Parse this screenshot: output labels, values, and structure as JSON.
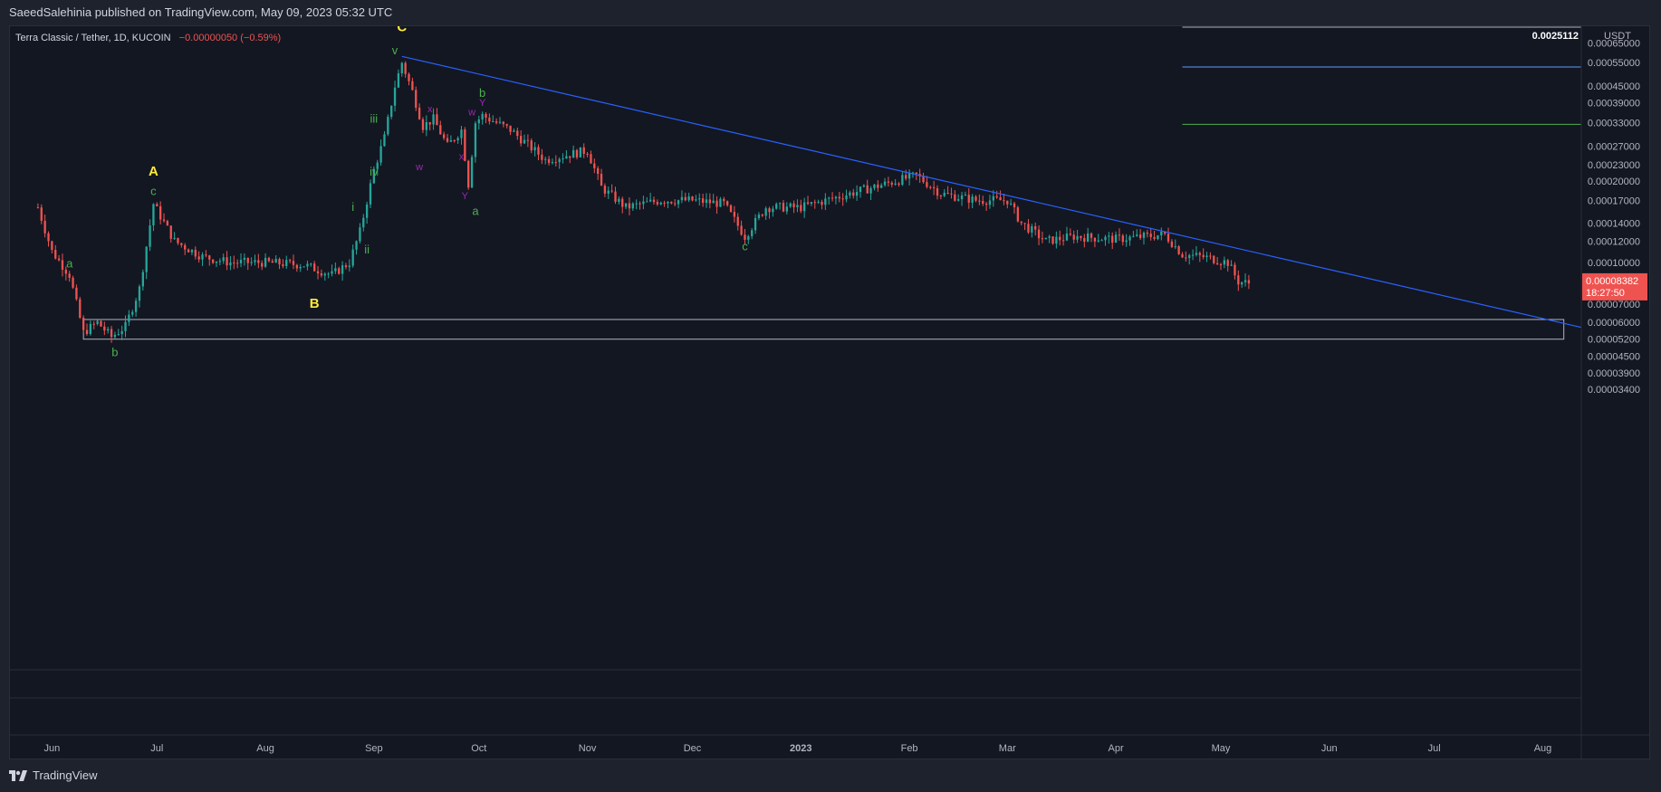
{
  "header": {
    "attribution": "SaeedSalehinia published on TradingView.com, May 09, 2023 05:32 UTC"
  },
  "footer": {
    "brand": "TradingView"
  },
  "colors": {
    "background": "#131722",
    "panel": "#1e222d",
    "up": "#26a69a",
    "down": "#ef5350",
    "trendline": "#2962ff",
    "wave_major": "#ffeb3b",
    "wave_minor": "#4caf50",
    "wave_complex": "#9c27b0",
    "axis_text": "#b2b5be"
  },
  "chart_data": {
    "type": "candlestick",
    "legend": {
      "symbol": "Terra Classic / Tether, 1D, KUCOIN",
      "change": "−0.00000050 (−0.59%)"
    },
    "y_axis": {
      "currency": "USDT",
      "scale": "log",
      "range": [
        3.1e-06,
        0.00075
      ],
      "ticks": [
        "0.00065000",
        "0.00055000",
        "0.00045000",
        "0.00039000",
        "0.00033000",
        "0.00027000",
        "0.00023000",
        "0.00020000",
        "0.00017000",
        "0.00014000",
        "0.00012000",
        "0.00010000",
        "0.00007000",
        "0.00006000",
        "0.00005200",
        "0.00004500",
        "0.00003900",
        "0.00003400"
      ],
      "tick_values": [
        0.00065,
        0.00055,
        0.00045,
        0.00039,
        0.00033,
        0.00027,
        0.00023,
        0.0002,
        0.00017,
        0.00014,
        0.00012,
        0.0001,
        7e-05,
        6e-05,
        5.2e-05,
        4.5e-05,
        3.9e-05,
        3.4e-05
      ],
      "top_label": "0.0025112",
      "last_price_label": "0.00008382",
      "countdown_label": "18:27:50"
    },
    "x_axis": {
      "range": [
        "2022-05-20",
        "2023-08-12"
      ],
      "ticks": [
        {
          "label": "Jun",
          "date": "2022-06-01"
        },
        {
          "label": "Jul",
          "date": "2022-07-01"
        },
        {
          "label": "Aug",
          "date": "2022-08-01"
        },
        {
          "label": "Sep",
          "date": "2022-09-01"
        },
        {
          "label": "Oct",
          "date": "2022-10-01"
        },
        {
          "label": "Nov",
          "date": "2022-11-01"
        },
        {
          "label": "Dec",
          "date": "2022-12-01"
        },
        {
          "label": "2023",
          "date": "2023-01-01"
        },
        {
          "label": "Feb",
          "date": "2023-02-01"
        },
        {
          "label": "Mar",
          "date": "2023-03-01"
        },
        {
          "label": "Apr",
          "date": "2023-04-01"
        },
        {
          "label": "May",
          "date": "2023-05-01"
        },
        {
          "label": "Jun",
          "date": "2023-06-01"
        },
        {
          "label": "Jul",
          "date": "2023-07-01"
        },
        {
          "label": "Aug",
          "date": "2023-08-01"
        }
      ]
    },
    "price_path": [
      {
        "date": "2022-05-28",
        "price": 0.00016
      },
      {
        "date": "2022-06-01",
        "price": 0.00011
      },
      {
        "date": "2022-06-06",
        "price": 9e-05
      },
      {
        "date": "2022-06-10",
        "price": 5.5e-05
      },
      {
        "date": "2022-06-14",
        "price": 6e-05
      },
      {
        "date": "2022-06-18",
        "price": 5.3e-05
      },
      {
        "date": "2022-06-22",
        "price": 5.8e-05
      },
      {
        "date": "2022-06-26",
        "price": 8e-05
      },
      {
        "date": "2022-06-30",
        "price": 0.000165
      },
      {
        "date": "2022-07-06",
        "price": 0.00012
      },
      {
        "date": "2022-07-14",
        "price": 0.000105
      },
      {
        "date": "2022-07-22",
        "price": 0.0001
      },
      {
        "date": "2022-08-01",
        "price": 0.0001
      },
      {
        "date": "2022-08-12",
        "price": 9.8e-05
      },
      {
        "date": "2022-08-20",
        "price": 9e-05
      },
      {
        "date": "2022-08-25",
        "price": 0.0001
      },
      {
        "date": "2022-08-28",
        "price": 0.00013
      },
      {
        "date": "2022-09-01",
        "price": 0.00022
      },
      {
        "date": "2022-09-04",
        "price": 0.00029
      },
      {
        "date": "2022-09-07",
        "price": 0.00045
      },
      {
        "date": "2022-09-09",
        "price": 0.00055
      },
      {
        "date": "2022-09-12",
        "price": 0.00043
      },
      {
        "date": "2022-09-15",
        "price": 0.00032
      },
      {
        "date": "2022-09-18",
        "price": 0.00034
      },
      {
        "date": "2022-09-22",
        "price": 0.00027
      },
      {
        "date": "2022-09-26",
        "price": 0.00031
      },
      {
        "date": "2022-09-28",
        "price": 0.000195
      },
      {
        "date": "2022-09-30",
        "price": 0.00033
      },
      {
        "date": "2022-10-02",
        "price": 0.00035
      },
      {
        "date": "2022-10-10",
        "price": 0.00031
      },
      {
        "date": "2022-10-20",
        "price": 0.00024
      },
      {
        "date": "2022-11-01",
        "price": 0.00026
      },
      {
        "date": "2022-11-05",
        "price": 0.00019
      },
      {
        "date": "2022-11-12",
        "price": 0.00016
      },
      {
        "date": "2022-11-22",
        "price": 0.00017
      },
      {
        "date": "2022-12-01",
        "price": 0.00017
      },
      {
        "date": "2022-12-10",
        "price": 0.000165
      },
      {
        "date": "2022-12-16",
        "price": 0.000125
      },
      {
        "date": "2022-12-22",
        "price": 0.00016
      },
      {
        "date": "2023-01-01",
        "price": 0.00016
      },
      {
        "date": "2023-01-15",
        "price": 0.00018
      },
      {
        "date": "2023-02-03",
        "price": 0.00021
      },
      {
        "date": "2023-02-10",
        "price": 0.00018
      },
      {
        "date": "2023-02-20",
        "price": 0.00017
      },
      {
        "date": "2023-03-01",
        "price": 0.00017
      },
      {
        "date": "2023-03-05",
        "price": 0.00014
      },
      {
        "date": "2023-03-12",
        "price": 0.00012
      },
      {
        "date": "2023-03-20",
        "price": 0.000125
      },
      {
        "date": "2023-04-01",
        "price": 0.000122
      },
      {
        "date": "2023-04-15",
        "price": 0.000127
      },
      {
        "date": "2023-04-20",
        "price": 0.000107
      },
      {
        "date": "2023-04-26",
        "price": 0.000105
      },
      {
        "date": "2023-05-03",
        "price": 0.0001
      },
      {
        "date": "2023-05-06",
        "price": 8.5e-05
      },
      {
        "date": "2023-05-09",
        "price": 8.38e-05
      }
    ],
    "annotations": {
      "trendline": [
        {
          "date": "2022-09-09",
          "price": 0.00058
        },
        {
          "date": "2023-08-12",
          "price": 5.75e-05
        }
      ],
      "zone": {
        "from": "2022-06-10",
        "to": "2023-08-07",
        "low": 5.2e-05,
        "high": 6.15e-05
      },
      "levels": [
        {
          "price": 0.00053,
          "from": "2023-04-20",
          "color": "#5b9cf6"
        },
        {
          "price": 0.000325,
          "from": "2023-04-20",
          "color": "#4caf50"
        }
      ],
      "labels": [
        {
          "text": "C",
          "date": "2022-09-09",
          "price": 0.00072,
          "class": "major"
        },
        {
          "text": "A",
          "date": "2022-06-30",
          "price": 0.00021,
          "class": "major"
        },
        {
          "text": "B",
          "date": "2022-08-15",
          "price": 6.8e-05,
          "class": "major"
        },
        {
          "text": "c",
          "date": "2022-06-30",
          "price": 0.000178,
          "class": "minor"
        },
        {
          "text": "a",
          "date": "2022-06-06",
          "price": 9.6e-05,
          "class": "minor"
        },
        {
          "text": "b",
          "date": "2022-06-19",
          "price": 4.5e-05,
          "class": "minor"
        },
        {
          "text": "v",
          "date": "2022-09-07",
          "price": 0.00059,
          "class": "minor"
        },
        {
          "text": "iii",
          "date": "2022-09-01",
          "price": 0.00033,
          "class": "minor"
        },
        {
          "text": "iv",
          "date": "2022-09-01",
          "price": 0.00021,
          "class": "minor"
        },
        {
          "text": "i",
          "date": "2022-08-26",
          "price": 0.000155,
          "class": "minor"
        },
        {
          "text": "ii",
          "date": "2022-08-30",
          "price": 0.000108,
          "class": "minor"
        },
        {
          "text": "b",
          "date": "2022-10-02",
          "price": 0.00041,
          "class": "minor"
        },
        {
          "text": "a",
          "date": "2022-09-30",
          "price": 0.00015,
          "class": "minor"
        },
        {
          "text": "c",
          "date": "2022-12-16",
          "price": 0.000111,
          "class": "minor"
        },
        {
          "text": "x",
          "date": "2022-09-17",
          "price": 0.00036,
          "class": "complex"
        },
        {
          "text": "w",
          "date": "2022-09-29",
          "price": 0.00035,
          "class": "complex"
        },
        {
          "text": "Y",
          "date": "2022-10-02",
          "price": 0.00038,
          "class": "complex"
        },
        {
          "text": "w",
          "date": "2022-09-14",
          "price": 0.00022,
          "class": "complex"
        },
        {
          "text": "x",
          "date": "2022-09-26",
          "price": 0.00024,
          "class": "complex"
        },
        {
          "text": "Y",
          "date": "2022-09-27",
          "price": 0.000172,
          "class": "complex"
        }
      ]
    }
  }
}
